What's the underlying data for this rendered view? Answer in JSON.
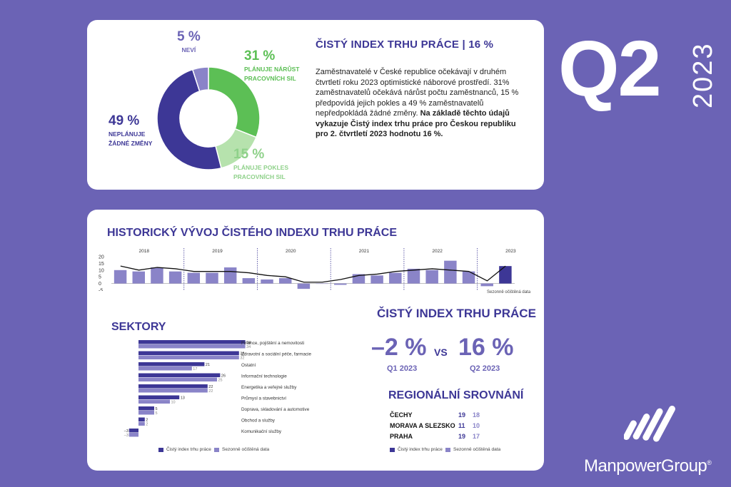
{
  "donut": {
    "segments": [
      {
        "key": "increase",
        "value": 31,
        "color": "#5cbf55"
      },
      {
        "key": "decrease",
        "value": 15,
        "color": "#b6e2ad"
      },
      {
        "key": "nochange",
        "value": 49,
        "color": "#3d3796"
      },
      {
        "key": "unknown",
        "value": 5,
        "color": "#8a84c8"
      }
    ],
    "labels": {
      "unknown_pct": "5 %",
      "unknown_desc": "NEVÍ",
      "increase_pct": "31 %",
      "increase_desc1": "PLÁNUJE NÁRŮST",
      "increase_desc2": "PRACOVNÍCH SIL",
      "decrease_pct": "15 %",
      "decrease_desc1": "PLÁNUJE POKLES",
      "decrease_desc2": "PRACOVNÍCH SIL",
      "nochange_pct": "49 %",
      "nochange_desc1": "NEPLÁNUJE",
      "nochange_desc2": "ŽÁDNÉ ZMĚNY"
    }
  },
  "top": {
    "heading": "ČISTÝ INDEX TRHU PRÁCE | 16 %",
    "text_normal": "Zaměstnavatelé v České republice očekávají v druhém čtvrtletí roku 2023 optimistické náborové prostředí. 31% zaměstnavatelů očekává nárůst počtu zaměstnanců, 15 % předpovídá jejich pokles a 49 % zaměstnavatelů nepředpokládá žádné změny.",
    "text_bold": "Na základě těchto údajů vykazuje Čistý index trhu práce pro Českou republiku pro 2. čtvrtletí 2023 hodnotu 16 %."
  },
  "badge": {
    "quarter": "Q2",
    "year": "2023"
  },
  "historical": {
    "title": "HISTORICKÝ VÝVOJ ČISTÉHO INDEXU TRHU PRÁCE",
    "note": "Sezonně očištěná data",
    "colors": {
      "bar": "#8a84c8",
      "bar_last": "#3d3796",
      "line": "#111111"
    }
  },
  "chart_data": [
    {
      "type": "bar",
      "title": "HISTORICKÝ VÝVOJ ČISTÉHO INDEXU TRHU PRÁCE",
      "ylim": [
        -5,
        20
      ],
      "yticks": [
        20,
        15,
        10,
        5,
        0,
        -5
      ],
      "year_labels": [
        "2018",
        "2019",
        "2020",
        "2021",
        "2022",
        "2023"
      ],
      "year_starts": [
        0,
        4,
        8,
        12,
        16,
        20
      ],
      "values": [
        10,
        9,
        12,
        9,
        8,
        8,
        12,
        4,
        3,
        4,
        -4,
        0,
        -1,
        7,
        6,
        8,
        11,
        10,
        17,
        9,
        -2,
        13
      ],
      "line": [
        13,
        10,
        12,
        11,
        9,
        9,
        9,
        8,
        6,
        5,
        1,
        1,
        3,
        6,
        7,
        9,
        10,
        11,
        10,
        9,
        2,
        13
      ]
    },
    {
      "type": "bar",
      "title": "SEKTORY",
      "series": [
        {
          "name": "Čistý index trhu práce",
          "values": [
            34,
            32,
            21,
            26,
            22,
            13,
            5,
            2,
            -3
          ]
        },
        {
          "name": "Sezonně očištěná data",
          "values": [
            34,
            32,
            17,
            25,
            22,
            10,
            5,
            2,
            -3
          ]
        }
      ],
      "categories": [
        "Finance, pojištění a nemovitosti",
        "Zdravotní a sociální péče, farmacie",
        "Ostatní",
        "Informační technologie",
        "Energetika a veřejné služby",
        "Průmysl a stavebnictví",
        "Doprava, skladování a automotive",
        "Obchod a služby",
        "Komunikační služby"
      ],
      "colors": [
        "#3d3796",
        "#8a84c8"
      ]
    }
  ],
  "sectors": {
    "title": "SEKTORY",
    "legend1": "Čistý index trhu práce",
    "legend2": "Sezonně očištěná data"
  },
  "index": {
    "title": "ČISTÝ INDEX TRHU PRÁCE",
    "q1_value": "–2 %",
    "vs": "VS",
    "q2_value": "16 %",
    "q1_label": "Q1 2023",
    "q2_label": "Q2 2023"
  },
  "regional": {
    "title": "REGIONÁLNÍ SROVNÁNÍ",
    "rows": [
      {
        "name": "ČECHY",
        "v1": "19",
        "v2": "18"
      },
      {
        "name": "MORAVA A SLEZSKO",
        "v1": "11",
        "v2": "10"
      },
      {
        "name": "PRAHA",
        "v1": "19",
        "v2": "17"
      }
    ],
    "legend1": "Čistý index trhu práce",
    "legend2": "Sezonně očištěná data"
  },
  "brand": {
    "name": "ManpowerGroup",
    "reg": "®",
    "color": "#ffffff"
  }
}
